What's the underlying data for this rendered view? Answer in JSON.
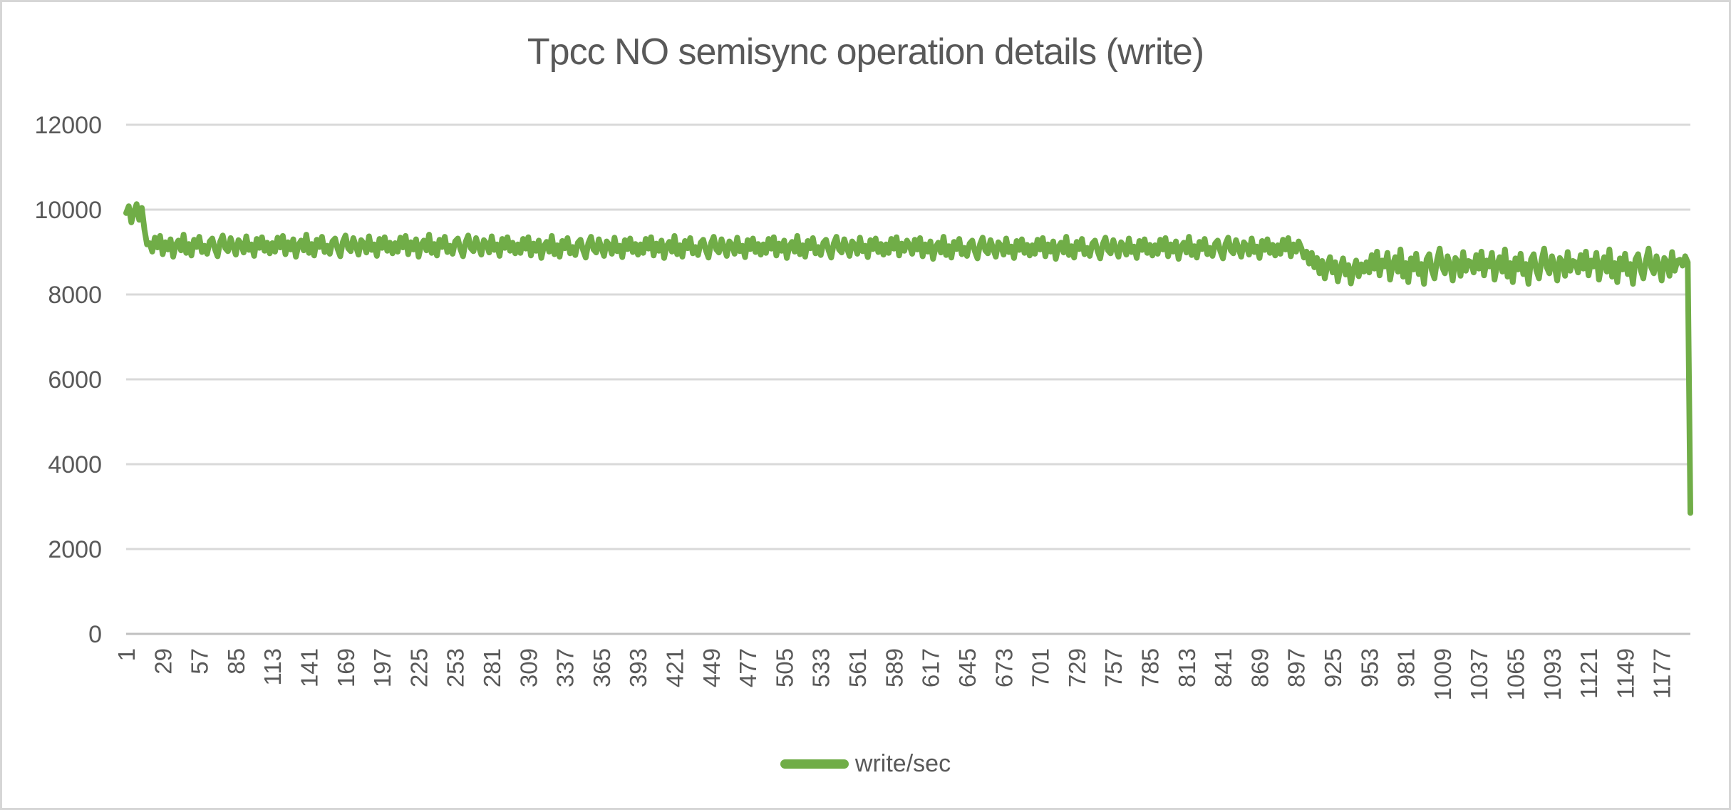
{
  "chart_data": {
    "type": "line",
    "title": "Tpcc NO semisync operation details (write)",
    "xlabel": "",
    "ylabel": "",
    "ylim": [
      0,
      12000
    ],
    "y_ticks": [
      0,
      2000,
      4000,
      6000,
      8000,
      10000,
      12000
    ],
    "x_tick_interval": 28,
    "x_tick_labels": [
      "1",
      "29",
      "57",
      "85",
      "113",
      "141",
      "169",
      "197",
      "225",
      "253",
      "281",
      "309",
      "337",
      "365",
      "393",
      "421",
      "449",
      "477",
      "505",
      "533",
      "561",
      "589",
      "617",
      "645",
      "673",
      "701",
      "729",
      "757",
      "785",
      "813",
      "841",
      "869",
      "897",
      "925",
      "953",
      "981",
      "1009",
      "1037",
      "1065",
      "1093",
      "1121",
      "1149",
      "1177"
    ],
    "grid": true,
    "legend_position": "bottom",
    "colors": {
      "grid": "#d9d9d9",
      "axis": "#c0c0c0",
      "text": "#595959",
      "background": "#ffffff",
      "frame_border": "#d6d6d6"
    },
    "series": [
      {
        "name": "write/sec",
        "color": "#70ad47",
        "x_start": 1,
        "x_step": 2,
        "values": [
          9920,
          10080,
          9700,
          9950,
          10130,
          9760,
          10040,
          9530,
          9180,
          9210,
          9010,
          9340,
          9110,
          9380,
          8950,
          9230,
          9060,
          9300,
          8890,
          9170,
          9270,
          9040,
          9410,
          8980,
          9190,
          8920,
          9290,
          9120,
          9360,
          9000,
          9150,
          8960,
          9250,
          9320,
          9070,
          8900,
          9240,
          9390,
          9090,
          9020,
          9330,
          9130,
          8940,
          9280,
          9200,
          8990,
          9370,
          9050,
          9180,
          8910,
          9310,
          9100,
          9350,
          9030,
          9220,
          8970,
          9210,
          9010,
          9340,
          9110,
          9380,
          8950,
          9230,
          9060,
          9300,
          8890,
          9170,
          9270,
          9040,
          9410,
          8980,
          9190,
          8920,
          9290,
          9120,
          9360,
          9000,
          9150,
          8960,
          9250,
          9320,
          9070,
          8900,
          9240,
          9390,
          9090,
          9020,
          9330,
          9130,
          8940,
          9280,
          9200,
          8990,
          9370,
          9050,
          9180,
          8910,
          9310,
          9100,
          9350,
          9030,
          9220,
          8970,
          9210,
          9010,
          9340,
          9110,
          9380,
          8950,
          9230,
          9060,
          9300,
          8890,
          9170,
          9270,
          9040,
          9410,
          8980,
          9190,
          8920,
          9290,
          9120,
          9360,
          9000,
          9150,
          8960,
          9250,
          9320,
          9070,
          8900,
          9240,
          9390,
          9090,
          9020,
          9330,
          9130,
          8940,
          9280,
          9200,
          8990,
          9370,
          9050,
          9180,
          8910,
          9310,
          9100,
          9350,
          9030,
          9220,
          8970,
          9180,
          8980,
          9310,
          9080,
          9350,
          8920,
          9200,
          9030,
          9270,
          8860,
          9140,
          9240,
          9010,
          9380,
          8950,
          9160,
          8890,
          9260,
          9090,
          9330,
          8970,
          9120,
          8930,
          9220,
          9290,
          9040,
          8870,
          9210,
          9360,
          9060,
          8990,
          9300,
          9100,
          8910,
          9250,
          9170,
          8960,
          9340,
          9020,
          9150,
          8880,
          9280,
          9070,
          9320,
          9000,
          9190,
          8940,
          9180,
          8980,
          9310,
          9080,
          9350,
          8920,
          9200,
          9030,
          9270,
          8860,
          9140,
          9240,
          9010,
          9380,
          8950,
          9160,
          8890,
          9260,
          9090,
          9330,
          8970,
          9120,
          8930,
          9220,
          9290,
          9040,
          8870,
          9210,
          9360,
          9060,
          8990,
          9300,
          9100,
          8910,
          9250,
          9170,
          8960,
          9340,
          9020,
          9150,
          8880,
          9280,
          9070,
          9320,
          9000,
          9190,
          8940,
          9180,
          8980,
          9310,
          9080,
          9350,
          8920,
          9200,
          9030,
          9270,
          8860,
          9140,
          9240,
          9010,
          9380,
          8950,
          9160,
          8890,
          9260,
          9090,
          9330,
          8970,
          9120,
          8930,
          9220,
          9290,
          9040,
          8870,
          9210,
          9360,
          9060,
          8990,
          9300,
          9100,
          8910,
          9250,
          9170,
          8960,
          9340,
          9020,
          9150,
          8880,
          9280,
          9070,
          9320,
          9000,
          9190,
          8940,
          9180,
          8980,
          9310,
          9080,
          9350,
          8920,
          9200,
          9030,
          9270,
          9160,
          8960,
          9290,
          9060,
          9330,
          8900,
          9180,
          9010,
          9250,
          8840,
          9120,
          9220,
          8990,
          9360,
          8930,
          9140,
          8870,
          9240,
          9070,
          9310,
          8950,
          9100,
          8910,
          9200,
          9270,
          9020,
          8850,
          9190,
          9340,
          9040,
          8970,
          9280,
          9080,
          8890,
          9230,
          9150,
          8940,
          9320,
          9000,
          9130,
          8860,
          9260,
          9050,
          9300,
          8980,
          9170,
          8920,
          9160,
          8960,
          9290,
          9060,
          9330,
          8900,
          9180,
          9010,
          9250,
          8840,
          9120,
          9220,
          8990,
          9360,
          8930,
          9140,
          8870,
          9240,
          9070,
          9310,
          8950,
          9100,
          8910,
          9200,
          9270,
          9020,
          8850,
          9190,
          9340,
          9040,
          8970,
          9280,
          9080,
          8890,
          9230,
          9150,
          8940,
          9320,
          9000,
          9130,
          8860,
          9260,
          9050,
          9300,
          8980,
          9170,
          8920,
          9160,
          8960,
          9290,
          9060,
          9330,
          8900,
          9180,
          9010,
          9250,
          8840,
          9120,
          9220,
          8990,
          9360,
          8930,
          9140,
          8870,
          9240,
          9070,
          9310,
          8950,
          9100,
          8910,
          9200,
          9270,
          9020,
          8850,
          9190,
          9340,
          9040,
          8970,
          9280,
          9080,
          8890,
          9230,
          9150,
          8940,
          9320,
          9000,
          9130,
          8860,
          9260,
          9050,
          9300,
          8980,
          9170,
          8920,
          9160,
          8960,
          9290,
          9060,
          9330,
          8900,
          9180,
          9010,
          9250,
          9100,
          8870,
          9010,
          8730,
          8980,
          8640,
          8860,
          8500,
          8790,
          8380,
          8680,
          8880,
          8520,
          8760,
          8310,
          8630,
          8850,
          8470,
          8690,
          8260,
          8580,
          8800,
          8430,
          8710,
          8540,
          8760,
          8520,
          8930,
          8610,
          9010,
          8450,
          8800,
          8660,
          8980,
          8350,
          8700,
          8880,
          8540,
          9060,
          8420,
          8740,
          8290,
          8850,
          8590,
          8960,
          8480,
          8720,
          8250,
          8830,
          8950,
          8570,
          8380,
          8810,
          9080,
          8640,
          8500,
          8900,
          8680,
          8330,
          8860,
          8770,
          8440,
          9000,
          8560,
          8790,
          8760,
          8520,
          8930,
          8610,
          9010,
          8450,
          8800,
          8660,
          8980,
          8350,
          8700,
          8880,
          8540,
          9060,
          8420,
          8740,
          8290,
          8850,
          8590,
          8960,
          8480,
          8720,
          8250,
          8830,
          8950,
          8570,
          8380,
          8810,
          9080,
          8640,
          8500,
          8900,
          8680,
          8330,
          8860,
          8770,
          8440,
          9000,
          8560,
          8790,
          8760,
          8520,
          8930,
          8610,
          9010,
          8450,
          8800,
          8660,
          8980,
          8350,
          8700,
          8880,
          8540,
          9060,
          8420,
          8740,
          8290,
          8850,
          8590,
          8960,
          8480,
          8720,
          8250,
          8830,
          8950,
          8570,
          8380,
          8810,
          9080,
          8640,
          8500,
          8900,
          8680,
          8330,
          8860,
          8770,
          8440,
          9000,
          8560,
          8790,
          8820,
          8680,
          8900,
          8760,
          2850
        ]
      }
    ]
  }
}
